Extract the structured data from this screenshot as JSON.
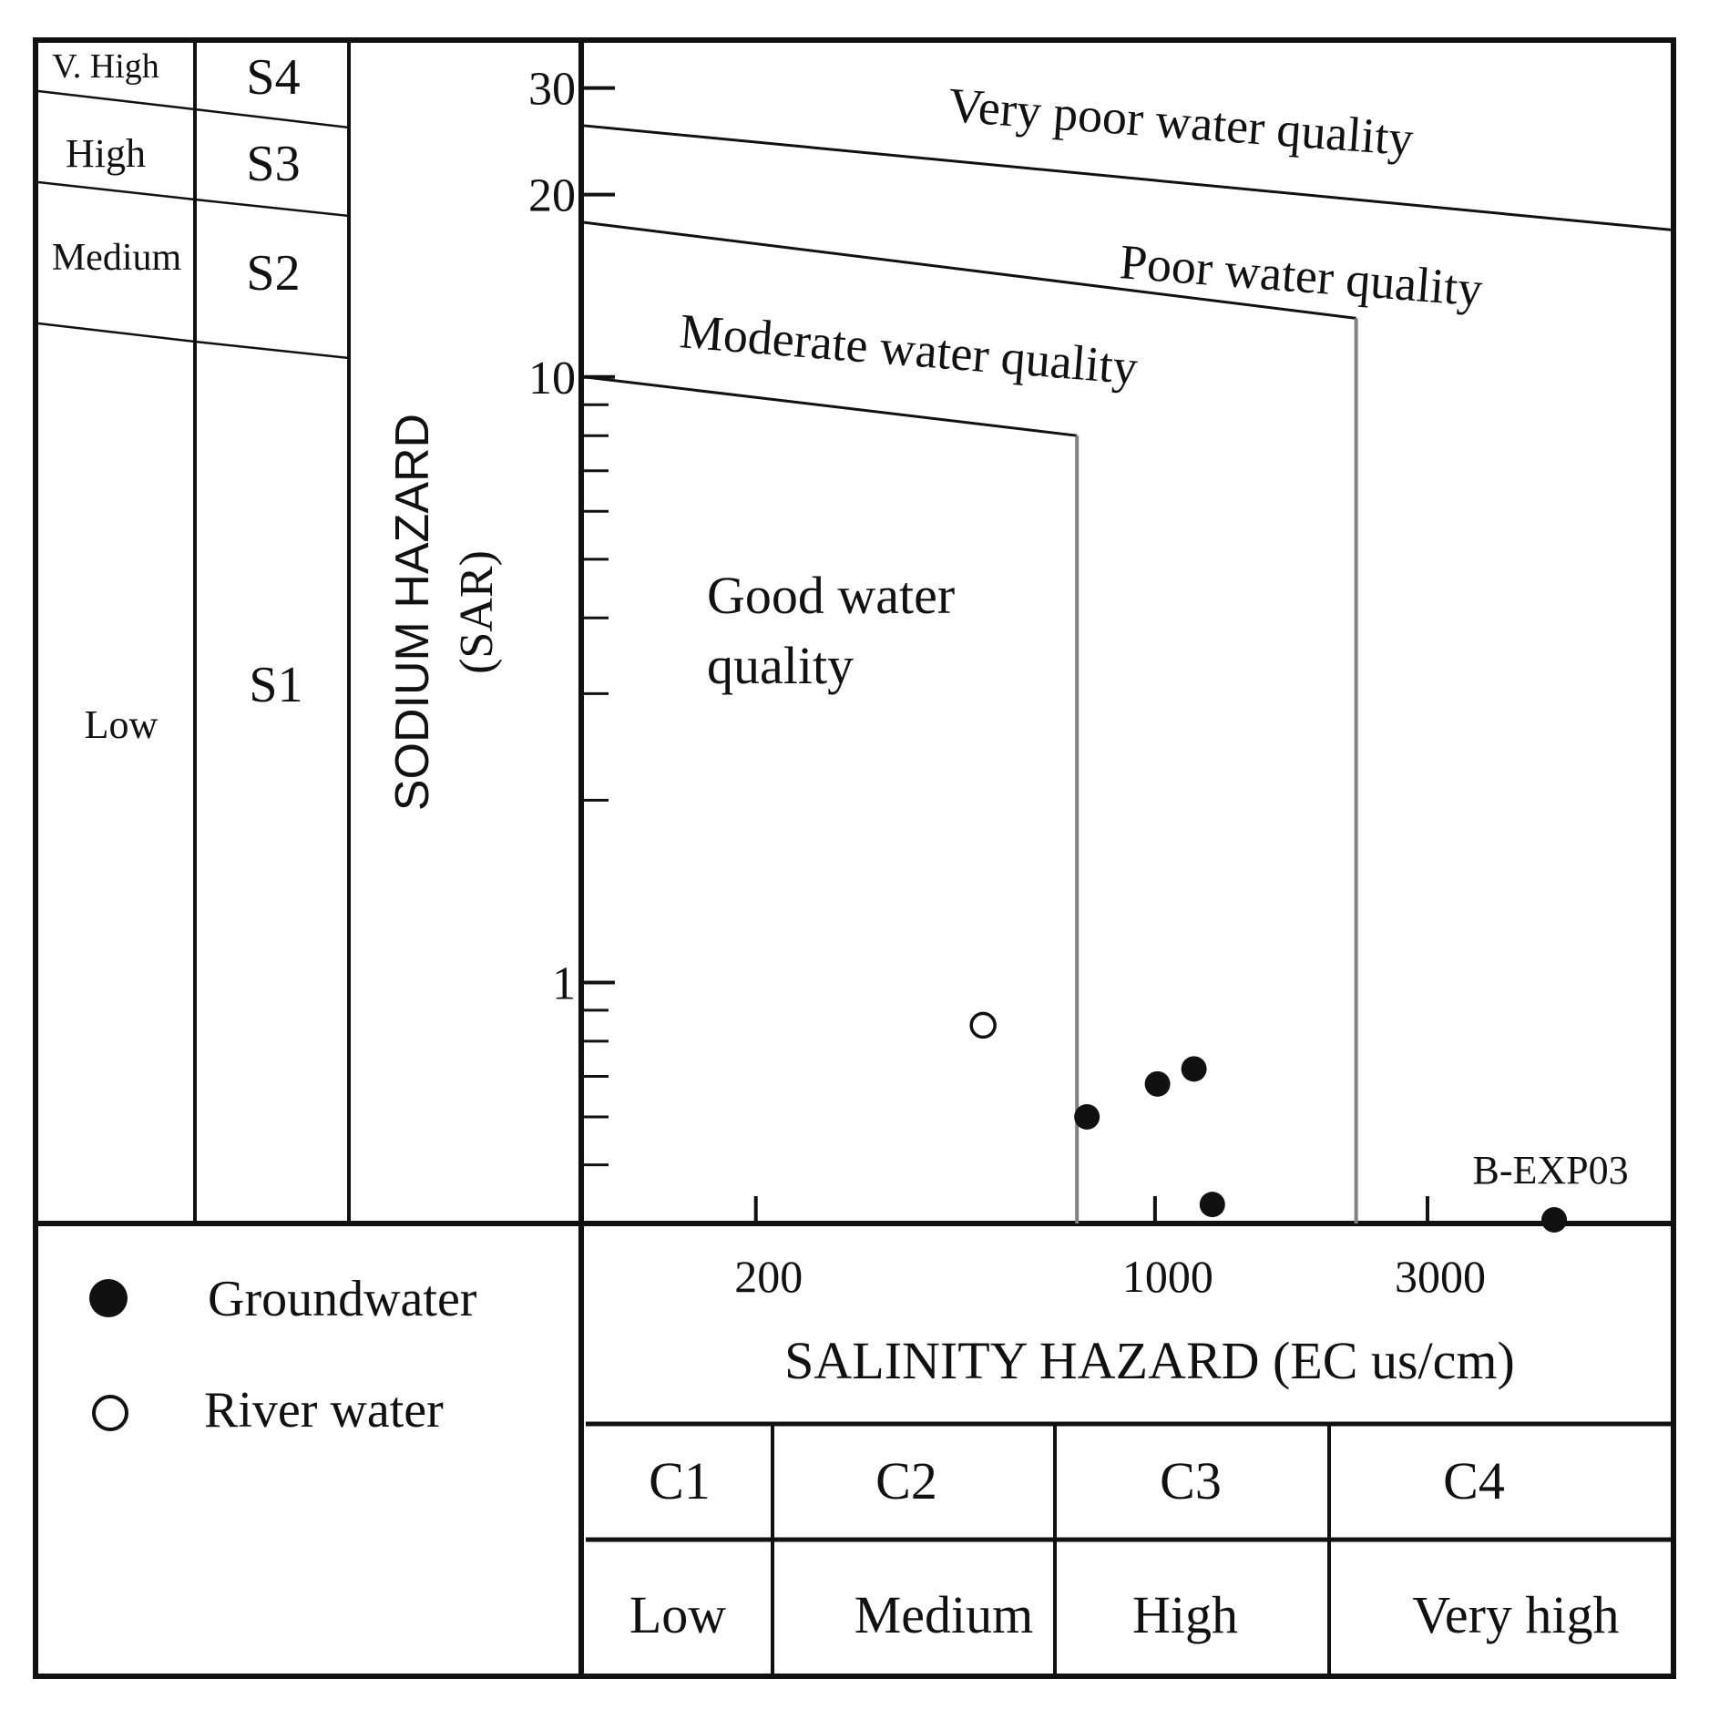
{
  "colors": {
    "ink": "#111111",
    "boundary_gray": "#808080",
    "background": "#ffffff"
  },
  "sodium_classes": [
    {
      "level": "V. High",
      "code": "S4"
    },
    {
      "level": "High",
      "code": "S3"
    },
    {
      "level": "Medium",
      "code": "S2"
    },
    {
      "level": "Low",
      "code": "S1"
    }
  ],
  "salinity_classes": [
    {
      "code": "C1",
      "level": "Low"
    },
    {
      "code": "C2",
      "level": "Medium"
    },
    {
      "code": "C3",
      "level": "High"
    },
    {
      "code": "C4",
      "level": "Very high"
    }
  ],
  "legend": {
    "groundwater": "Groundwater",
    "river": "River water"
  },
  "zones": {
    "very_poor": "Very poor water quality",
    "poor": "Poor water quality",
    "moderate": "Moderate water quality",
    "good_line1": "Good water",
    "good_line2": "quality"
  },
  "chart_data": {
    "type": "scatter",
    "title": "",
    "xlabel": "SALINITY HAZARD (EC us/cm)",
    "ylabel_line1": "SODIUM HAZARD",
    "ylabel_line2": "(SAR)",
    "x_scale": "log",
    "y_scale": "log",
    "xlim": [
      100,
      8000
    ],
    "ylim": [
      0.4,
      36
    ],
    "x_ticks": [
      200,
      1000,
      3000
    ],
    "x_tick_labels": [
      "200",
      "1000",
      "3000"
    ],
    "y_ticks": [
      1,
      10,
      20,
      30
    ],
    "y_tick_labels": [
      "1",
      "10",
      "20",
      "30"
    ],
    "y_minor_ticks": [
      0.5,
      0.6,
      0.7,
      0.8,
      0.9,
      2,
      3,
      4,
      5,
      6,
      7,
      8,
      9
    ],
    "series": [
      {
        "name": "Groundwater",
        "marker": "filled-circle",
        "points": [
          {
            "x": 760,
            "y": 0.6
          },
          {
            "x": 1010,
            "y": 0.68
          },
          {
            "x": 1170,
            "y": 0.72
          },
          {
            "x": 1260,
            "y": 0.43
          },
          {
            "x": 5000,
            "y": 0.37,
            "label": "B-EXP03"
          }
        ]
      },
      {
        "name": "River water",
        "marker": "open-circle",
        "points": [
          {
            "x": 500,
            "y": 0.85
          }
        ]
      }
    ],
    "class_boundaries": [
      {
        "between": [
          "Good water quality",
          "Moderate water quality"
        ],
        "sar_at_xmin": 10,
        "sar_at_corner": 8,
        "ec_vertical": 730
      },
      {
        "between": [
          "Moderate water quality",
          "Poor water quality"
        ],
        "sar_at_xmin": 18,
        "sar_at_corner": 12.5,
        "ec_vertical": 2250
      },
      {
        "between": [
          "Poor water quality",
          "Very poor water quality"
        ],
        "sar_at_xmin": 26,
        "sar_at_xmax": 17.5
      }
    ]
  }
}
